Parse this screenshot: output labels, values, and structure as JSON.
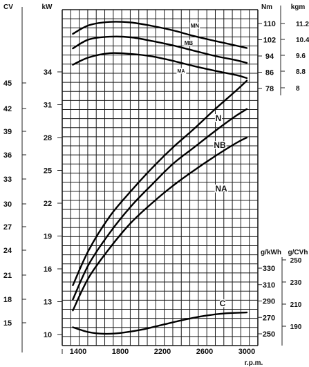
{
  "chart_data": {
    "type": "line",
    "xlabel": "r.p.m.",
    "x_ticks": [
      "1400",
      "1800",
      "2200",
      "2600",
      "3000"
    ],
    "axes": {
      "cv": {
        "unit": "CV",
        "ticks": [
          "45",
          "42",
          "39",
          "36",
          "33",
          "30",
          "27",
          "24",
          "21",
          "18",
          "15"
        ]
      },
      "kw": {
        "unit": "kW",
        "ticks": [
          "34",
          "31",
          "28",
          "25",
          "22",
          "19",
          "16",
          "13",
          "10"
        ]
      },
      "nm": {
        "unit": "Nm",
        "ticks": [
          "110",
          "102",
          "94",
          "86",
          "78"
        ]
      },
      "kgm": {
        "unit": "kgm",
        "ticks": [
          "11.2",
          "10.4",
          "9.6",
          "8.8",
          "8"
        ]
      },
      "gkwh": {
        "unit": "g/kWh",
        "ticks": [
          "330",
          "310",
          "290",
          "270",
          "250"
        ]
      },
      "gcvh": {
        "unit": "g/CVh",
        "ticks": [
          "250",
          "230",
          "210",
          "190"
        ]
      }
    },
    "series": [
      {
        "name": "MN",
        "group": "torque",
        "x": [
          1350,
          1500,
          1700,
          1900,
          2100,
          2300,
          2500,
          2700,
          2900,
          3000
        ],
        "y": [
          104.9,
          109.1,
          110.8,
          110.5,
          108.8,
          106.6,
          103.8,
          101.4,
          99.1,
          97.9
        ]
      },
      {
        "name": "MB",
        "group": "torque",
        "x": [
          1350,
          1500,
          1700,
          1900,
          2100,
          2300,
          2500,
          2700,
          2900,
          3000
        ],
        "y": [
          97.7,
          102.1,
          103.5,
          103.2,
          101.4,
          99.2,
          96.6,
          94.0,
          91.9,
          90.6
        ]
      },
      {
        "name": "MA",
        "group": "torque",
        "x": [
          1350,
          1500,
          1700,
          1900,
          2100,
          2300,
          2500,
          2700,
          2900,
          3000
        ],
        "y": [
          89.7,
          93.3,
          95.4,
          95.0,
          93.8,
          91.6,
          89.0,
          86.7,
          84.6,
          83.1
        ]
      },
      {
        "name": "N",
        "group": "power",
        "x": [
          1350,
          1500,
          1700,
          1900,
          2100,
          2300,
          2500,
          2700,
          2900,
          3000
        ],
        "y": [
          14.5,
          17.7,
          20.8,
          23.1,
          25.2,
          27.1,
          28.8,
          30.6,
          32.3,
          33.2
        ]
      },
      {
        "name": "NB",
        "group": "power",
        "x": [
          1350,
          1500,
          1700,
          1900,
          2100,
          2300,
          2500,
          2700,
          2900,
          3000
        ],
        "y": [
          13.2,
          16.4,
          19.3,
          21.7,
          23.7,
          25.6,
          27.1,
          28.6,
          30.0,
          30.6
        ]
      },
      {
        "name": "NA",
        "group": "power",
        "x": [
          1350,
          1500,
          1700,
          1900,
          2100,
          2300,
          2500,
          2700,
          2900,
          3000
        ],
        "y": [
          12.2,
          15.2,
          17.9,
          20.2,
          22.0,
          23.6,
          25.0,
          26.3,
          27.5,
          28.0
        ]
      },
      {
        "name": "C",
        "group": "consumption",
        "x": [
          1350,
          1500,
          1650,
          1800,
          2000,
          2200,
          2400,
          2600,
          2800,
          3000
        ],
        "y": [
          258,
          252,
          250,
          251,
          255,
          261,
          267,
          272,
          275,
          276
        ]
      }
    ],
    "grid": true
  }
}
